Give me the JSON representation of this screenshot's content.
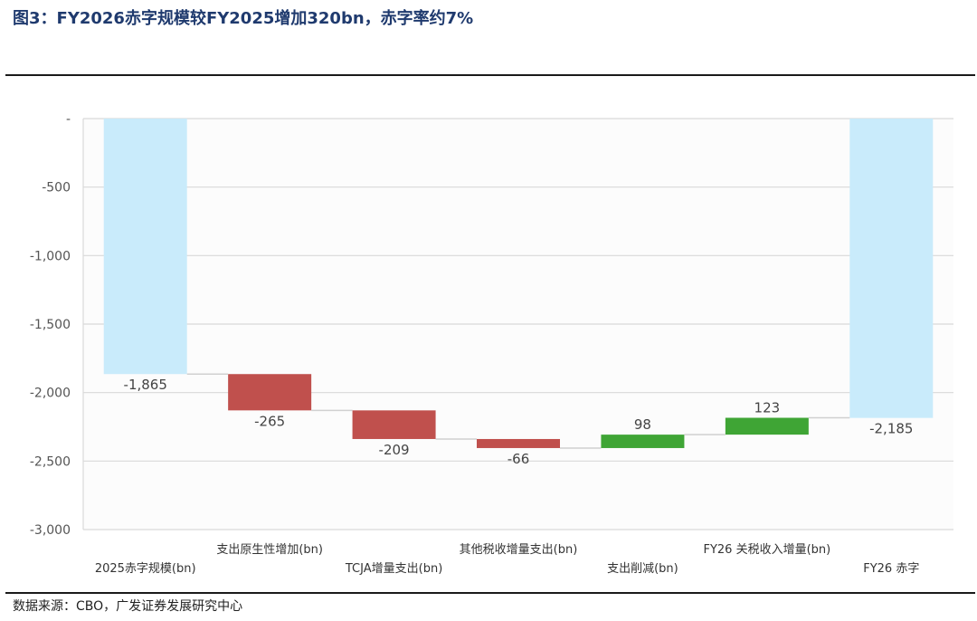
{
  "title": "图3：FY2026赤字规模较FY2025增加320bn，赤字率约7%",
  "source": "数据来源：CBO，广发证券发展研究中心",
  "chart_data": {
    "type": "bar",
    "subtype": "waterfall",
    "categories": [
      "2025赤字规模(bn)",
      "支出原生性增加(bn)",
      "TCJA增量支出(bn)",
      "其他税收增量支出(bn)",
      "支出削减(bn)",
      "FY26 关税收入增量(bn)",
      "FY26 赤字"
    ],
    "values": [
      -1865,
      -265,
      -209,
      -66,
      98,
      123,
      -2185
    ],
    "labels": [
      "-1,865",
      "-265",
      "-209",
      "-66",
      "98",
      "123",
      "-2,185"
    ],
    "kind": [
      "total",
      "change",
      "change",
      "change",
      "change",
      "change",
      "total"
    ],
    "ylim": [
      -3000,
      0
    ],
    "yticks": [
      0,
      -500,
      -1000,
      -1500,
      -2000,
      -2500,
      -3000
    ],
    "ytick_labels": [
      "-",
      "-500",
      "-1,000",
      "-1,500",
      "-2,000",
      "-2,500",
      "-3,000"
    ],
    "grid": true,
    "legend": "none",
    "colors": {
      "total": "#c9ebfb",
      "decrease": "#c0504d",
      "increase": "#3fa535",
      "grid": "#d9d9d9",
      "connector": "#d0d0d0"
    }
  }
}
